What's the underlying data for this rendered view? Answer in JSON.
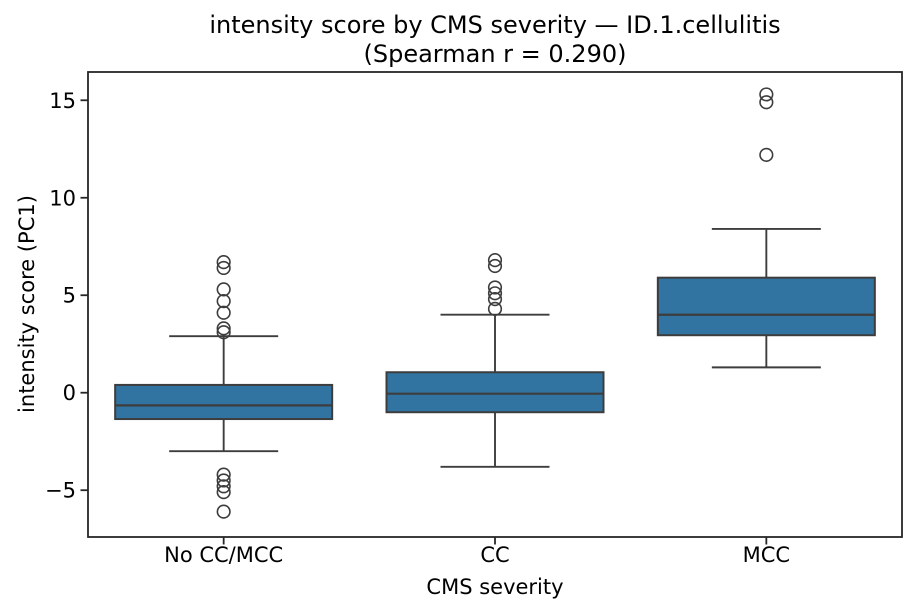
{
  "figure": {
    "title_line1": "intensity score by CMS severity — ID.1.cellulitis",
    "title_line2": "(Spearman r = 0.290)",
    "xlabel": "CMS severity",
    "ylabel": "intensity score (PC1)"
  },
  "chart_data": {
    "type": "box",
    "title": "intensity score by CMS severity — ID.1.cellulitis (Spearman r = 0.290)",
    "xlabel": "CMS severity",
    "ylabel": "intensity score (PC1)",
    "categories": [
      "No CC/MCC",
      "CC",
      "MCC"
    ],
    "yticks": [
      {
        "value": -5,
        "label": "−5"
      },
      {
        "value": 0,
        "label": "0"
      },
      {
        "value": 5,
        "label": "5"
      },
      {
        "value": 10,
        "label": "10"
      },
      {
        "value": 15,
        "label": "15"
      }
    ],
    "ylim": [
      -7.4,
      16.45
    ],
    "grid": false,
    "legend": "none",
    "colors": {
      "box_fill": "#3274a1",
      "line": "#3d3d3d",
      "frame": "#262626"
    },
    "series": [
      {
        "category": "No CC/MCC",
        "whisker_low": -3.0,
        "q1": -1.35,
        "median": -0.65,
        "q3": 0.4,
        "whisker_high": 2.9,
        "outliers": [
          6.7,
          6.4,
          5.3,
          4.7,
          4.1,
          3.3,
          3.1,
          -4.2,
          -4.5,
          -4.8,
          -5.1,
          -6.1
        ]
      },
      {
        "category": "CC",
        "whisker_low": -3.8,
        "q1": -1.0,
        "median": -0.05,
        "q3": 1.05,
        "whisker_high": 4.0,
        "outliers": [
          6.8,
          6.5,
          5.4,
          5.1,
          4.8,
          4.3
        ]
      },
      {
        "category": "MCC",
        "whisker_low": 1.3,
        "q1": 2.95,
        "median": 4.0,
        "q3": 5.9,
        "whisker_high": 8.4,
        "outliers": [
          15.3,
          14.9,
          12.2
        ]
      }
    ]
  }
}
